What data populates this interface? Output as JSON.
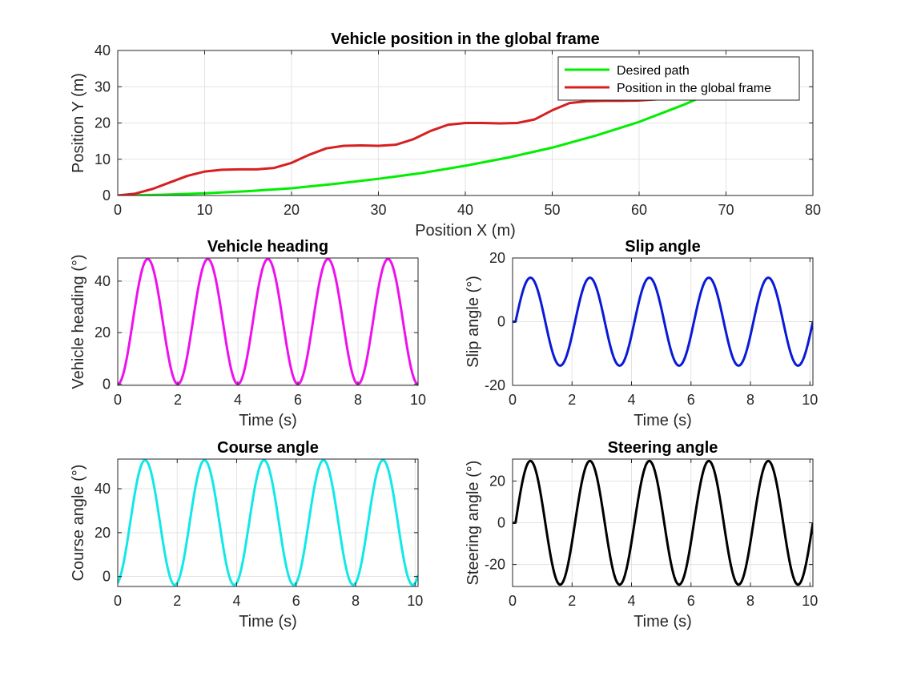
{
  "chart_data": [
    {
      "id": "global",
      "type": "line",
      "title": "Vehicle position in the global frame",
      "xlabel": "Position X (m)",
      "ylabel": "Position Y (m)",
      "xlim": [
        0,
        80
      ],
      "ylim": [
        0,
        40
      ],
      "xticks": [
        0,
        10,
        20,
        30,
        40,
        50,
        60,
        70,
        80
      ],
      "yticks": [
        0,
        10,
        20,
        30,
        40
      ],
      "grid": true,
      "legend": "top-right",
      "series": [
        {
          "name": "Desired path",
          "color": "#00ee00",
          "x": [
            0,
            5,
            10,
            15,
            20,
            25,
            30,
            35,
            40,
            45,
            50,
            55,
            60,
            65,
            70
          ],
          "y": [
            0,
            0.2,
            0.6,
            1.2,
            2.0,
            3.2,
            4.6,
            6.2,
            8.2,
            10.5,
            13.2,
            16.5,
            20.3,
            24.9,
            30.0
          ]
        },
        {
          "name": "Position in the global frame",
          "color": "#d62020",
          "x": [
            0,
            2,
            4,
            6,
            8,
            10,
            12,
            14,
            16,
            18,
            20,
            22,
            24,
            26,
            28,
            30,
            32,
            34,
            36,
            38,
            40,
            42,
            44,
            46,
            48,
            50,
            52,
            54,
            56,
            58,
            60,
            62,
            64,
            66,
            68
          ],
          "y": [
            0,
            0.5,
            1.8,
            3.6,
            5.4,
            6.6,
            7.1,
            7.2,
            7.2,
            7.6,
            9.0,
            11.2,
            13.0,
            13.7,
            13.8,
            13.7,
            14.0,
            15.5,
            17.8,
            19.5,
            20.0,
            20.0,
            19.9,
            20.0,
            21.0,
            23.5,
            25.5,
            26.0,
            26.1,
            26.1,
            26.2,
            26.5,
            27.2,
            28.0,
            29.0
          ]
        }
      ]
    },
    {
      "id": "heading",
      "type": "line",
      "title": "Vehicle heading",
      "xlabel": "Time (s)",
      "ylabel": "Vehicle heading (°)",
      "xlim": [
        0,
        10
      ],
      "ylim": [
        -0.5,
        49
      ],
      "xticks": [
        0,
        2,
        4,
        6,
        8,
        10
      ],
      "yticks": [
        0,
        20,
        40
      ],
      "grid": true,
      "wave": {
        "offset": 24.3,
        "amplitude": -24.3,
        "period": 2.0,
        "phase": 0
      },
      "series": [
        {
          "color": "#ee11ee"
        }
      ]
    },
    {
      "id": "slip",
      "type": "line",
      "title": "Slip angle",
      "xlabel": "Time (s)",
      "ylabel": "Slip angle (°)",
      "xlim": [
        0,
        10.1
      ],
      "ylim": [
        -20,
        20
      ],
      "xticks": [
        0,
        2,
        4,
        6,
        8,
        10
      ],
      "yticks": [
        -20,
        0,
        20
      ],
      "grid": true,
      "wave": {
        "offset": 0,
        "amplitude": 13.8,
        "period": 2.0,
        "phase": 0.1,
        "start_hold": 0.1
      },
      "series": [
        {
          "color": "#0a1ad6"
        }
      ]
    },
    {
      "id": "course",
      "type": "line",
      "title": "Course angle",
      "xlabel": "Time (s)",
      "ylabel": "Course angle (°)",
      "xlim": [
        0,
        10.1
      ],
      "ylim": [
        -4.5,
        53.5
      ],
      "xticks": [
        0,
        2,
        4,
        6,
        8,
        10
      ],
      "yticks": [
        0,
        20,
        40
      ],
      "grid": true,
      "wave": {
        "offset": 24.6,
        "amplitude": -28.4,
        "period": 2.0,
        "phase": -0.08
      },
      "series": [
        {
          "color": "#11e8e8"
        }
      ]
    },
    {
      "id": "steering",
      "type": "line",
      "title": "Steering angle",
      "xlabel": "Time (s)",
      "ylabel": "Steering angle (°)",
      "xlim": [
        0,
        10.1
      ],
      "ylim": [
        -30.5,
        30.5
      ],
      "xticks": [
        0,
        2,
        4,
        6,
        8,
        10
      ],
      "yticks": [
        -20,
        0,
        20
      ],
      "grid": true,
      "wave": {
        "offset": 0,
        "amplitude": 29.6,
        "period": 2.0,
        "phase": 0.1,
        "start_hold": 0.1
      },
      "series": [
        {
          "color": "#000000"
        }
      ]
    }
  ]
}
